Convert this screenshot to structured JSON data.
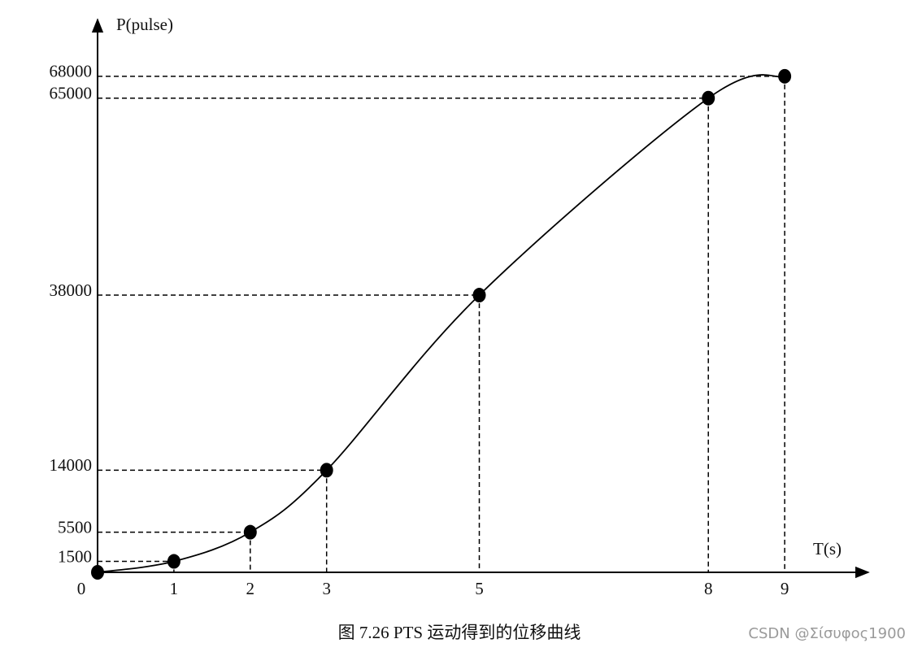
{
  "chart_data": {
    "type": "line",
    "title": "图 7.26   PTS 运动得到的位移曲线",
    "xlabel": "T(s)",
    "ylabel": "P(pulse)",
    "x": [
      0,
      1,
      2,
      3,
      5,
      8,
      9
    ],
    "values": [
      0,
      1500,
      5500,
      14000,
      38000,
      65000,
      68000
    ],
    "color": "#000000",
    "markers": true,
    "guide_lines": true,
    "xlim": [
      0,
      10
    ],
    "ylim": [
      0,
      75000
    ],
    "xticks": [
      0,
      1,
      2,
      3,
      5,
      8,
      9
    ],
    "yticks": [
      1500,
      5500,
      14000,
      38000,
      65000,
      68000
    ]
  },
  "watermark": "CSDN @Σίσυφος1900"
}
